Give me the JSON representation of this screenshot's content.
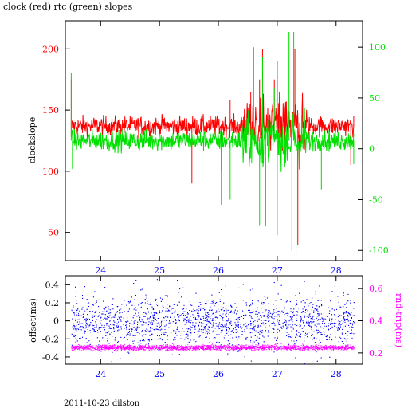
{
  "title": "clock (red) rtc (green) slopes",
  "footer": "2011-10-23 dilston",
  "colors": {
    "clock": "#ff0000",
    "rtc": "#00e000",
    "offset": "#0000ff",
    "rndtrip": "#ff00ff",
    "axis": "#000000"
  },
  "chart_data": [
    {
      "type": "line",
      "xlim": [
        23.4,
        28.45
      ],
      "x_ticks": [
        "24",
        "25",
        "26",
        "27",
        "28"
      ],
      "x_tick_values": [
        24,
        25,
        26,
        27,
        28
      ],
      "left_axis": {
        "label": "clockslope",
        "ylim": [
          27,
          223
        ],
        "ticks": [
          "50",
          "100",
          "150",
          "200"
        ],
        "tick_values": [
          50,
          100,
          150,
          200
        ]
      },
      "right_axis": {
        "label": "",
        "ylim": [
          -110,
          126
        ],
        "ticks": [
          "-100",
          "-50",
          "0",
          "50",
          "100"
        ],
        "tick_values": [
          -100,
          -50,
          0,
          50,
          100
        ]
      },
      "series": [
        {
          "name": "clock",
          "axis": "left",
          "baseline": 137,
          "noise": 4,
          "spikes": [
            {
              "x": 23.5,
              "y": 175
            },
            {
              "x": 23.5,
              "y": 128
            },
            {
              "x": 25.55,
              "y": 90
            },
            {
              "x": 26.05,
              "y": 100
            },
            {
              "x": 26.2,
              "y": 158
            },
            {
              "x": 26.55,
              "y": 165
            },
            {
              "x": 26.7,
              "y": 175
            },
            {
              "x": 26.75,
              "y": 200
            },
            {
              "x": 26.8,
              "y": 55
            },
            {
              "x": 26.95,
              "y": 175
            },
            {
              "x": 27.0,
              "y": 190
            },
            {
              "x": 27.25,
              "y": 35
            },
            {
              "x": 27.3,
              "y": 200
            },
            {
              "x": 27.35,
              "y": 40
            },
            {
              "x": 28.25,
              "y": 105
            },
            {
              "x": 28.3,
              "y": 145
            }
          ]
        },
        {
          "name": "rtc",
          "axis": "right",
          "baseline": 8,
          "noise": 5,
          "spikes": [
            {
              "x": 23.5,
              "y": 75
            },
            {
              "x": 23.52,
              "y": -20
            },
            {
              "x": 26.05,
              "y": -55
            },
            {
              "x": 26.2,
              "y": -50
            },
            {
              "x": 26.6,
              "y": 100
            },
            {
              "x": 26.7,
              "y": -75
            },
            {
              "x": 26.75,
              "y": 90
            },
            {
              "x": 26.95,
              "y": 60
            },
            {
              "x": 27.0,
              "y": -85
            },
            {
              "x": 27.2,
              "y": 115
            },
            {
              "x": 27.28,
              "y": 115
            },
            {
              "x": 27.32,
              "y": -105
            },
            {
              "x": 27.75,
              "y": -40
            },
            {
              "x": 28.3,
              "y": -15
            }
          ]
        }
      ]
    },
    {
      "type": "scatter",
      "xlim": [
        23.4,
        28.45
      ],
      "x_ticks": [
        "24",
        "25",
        "26",
        "27",
        "28"
      ],
      "x_tick_values": [
        24,
        25,
        26,
        27,
        28
      ],
      "left_axis": {
        "label": "offset(ms)",
        "ylim": [
          -0.48,
          0.5
        ],
        "ticks": [
          "-0.4",
          "-0.2",
          "0",
          "0.2",
          "0.4"
        ],
        "tick_values": [
          -0.4,
          -0.2,
          0,
          0.2,
          0.4
        ]
      },
      "right_axis": {
        "label": "rnd-trip(ms)",
        "ylim": [
          0.13,
          0.68
        ],
        "ticks": [
          "0.2",
          "0.4",
          "0.6"
        ],
        "tick_values": [
          0.2,
          0.4,
          0.6
        ]
      },
      "series": [
        {
          "name": "offset",
          "axis": "left",
          "center": 0.0,
          "spread": 0.13
        },
        {
          "name": "rnd-trip",
          "axis": "right",
          "center": 0.235,
          "spread": 0.008
        }
      ]
    }
  ]
}
